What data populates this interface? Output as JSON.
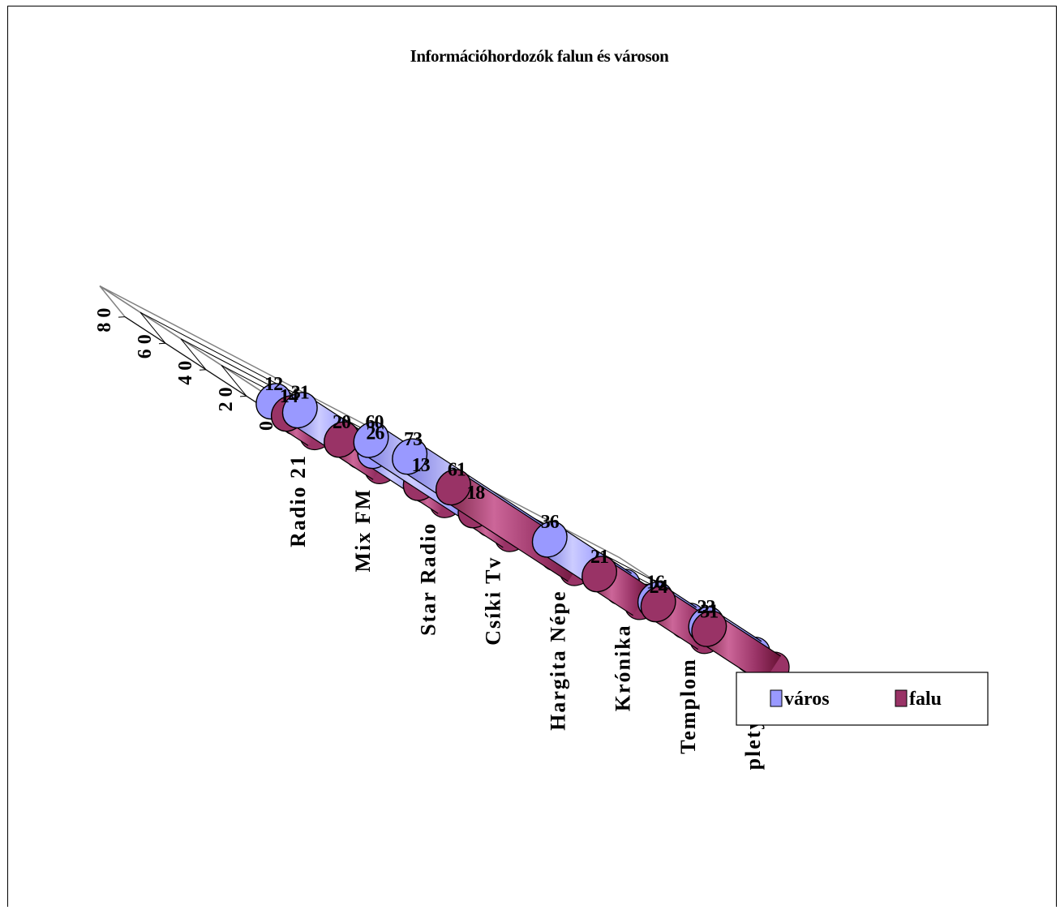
{
  "chart_data": {
    "type": "bar",
    "title": "Információhordozók falun és városon",
    "categories": [
      "Radio 21",
      "Mix FM",
      "Star Radio",
      "Csíki Tv",
      "Hargita Népe",
      "Krónika",
      "Templom",
      "pletyka"
    ],
    "series": [
      {
        "name": "város",
        "values": [
          12,
          31,
          26,
          60,
          73,
          36,
          16,
          23
        ],
        "color": "#9999ff"
      },
      {
        "name": "falu",
        "values": [
          14,
          20,
          13,
          18,
          61,
          21,
          24,
          31
        ],
        "color": "#993366"
      }
    ],
    "yticks": [
      "0",
      "2 0",
      "4 0",
      "6 0",
      "8 0"
    ],
    "ylim": [
      0,
      80
    ],
    "legend_position": "bottom-right",
    "grid": true
  }
}
